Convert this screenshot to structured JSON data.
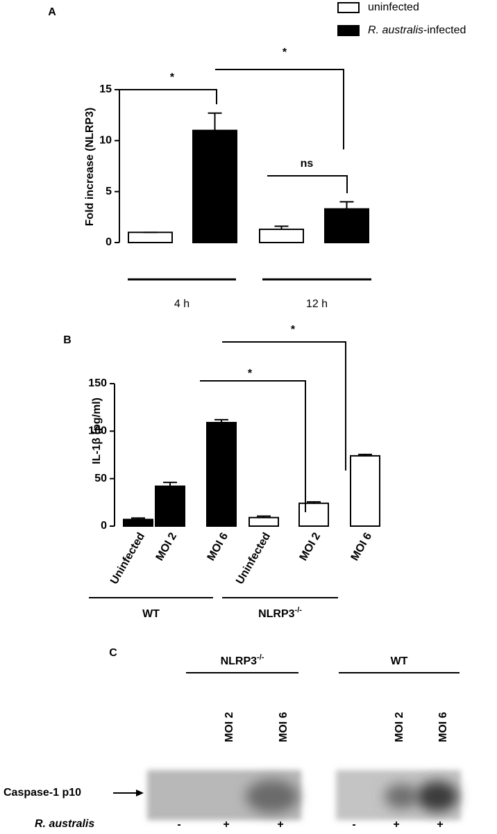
{
  "chart_data": [
    {
      "type": "bar",
      "panel": "A",
      "ylabel": "Fold increase (NLRP3)",
      "categories": [
        "4 h",
        "12 h"
      ],
      "series": [
        {
          "name": "uninfected",
          "color": "#ffffff",
          "values": [
            1,
            1.3
          ],
          "errors": [
            0,
            0.3
          ]
        },
        {
          "name": "R. australis-infected",
          "color": "#000000",
          "values": [
            11,
            3.3
          ],
          "errors": [
            1.7,
            0.7
          ]
        }
      ],
      "ylim": [
        0,
        15
      ],
      "yticks": [
        0,
        5,
        10,
        15
      ],
      "annotations": [
        "*",
        "*",
        "ns"
      ]
    },
    {
      "type": "bar",
      "panel": "B",
      "ylabel": "IL-1β (pg/ml)",
      "categories": [
        "Uninfected",
        "MOI 2",
        "MOI 6",
        "Uninfected",
        "MOI 2",
        "MOI 6"
      ],
      "values": [
        7,
        42,
        109,
        9,
        24,
        74
      ],
      "errors": [
        1.5,
        4,
        3,
        1.5,
        1.5,
        1.5
      ],
      "colors": [
        "#000000",
        "#000000",
        "#000000",
        "#ffffff",
        "#ffffff",
        "#ffffff"
      ],
      "groups": [
        {
          "label": "WT"
        },
        {
          "label": "NLRP3",
          "superscript": "-/-"
        }
      ],
      "ylim": [
        0,
        150
      ],
      "yticks": [
        0,
        50,
        100,
        150
      ],
      "annotations": [
        "*",
        "*"
      ]
    }
  ],
  "blot": {
    "panel": "C",
    "groups": [
      {
        "label": "NLRP3",
        "superscript": "-/-"
      },
      {
        "label": "WT"
      }
    ],
    "lanes": [
      {
        "moi": null,
        "sign": "-"
      },
      {
        "moi": "MOI 2",
        "sign": "+"
      },
      {
        "moi": "MOI 6",
        "sign": "+"
      },
      {
        "moi": null,
        "sign": "-"
      },
      {
        "moi": "MOI 2",
        "sign": "+"
      },
      {
        "moi": "MOI 6",
        "sign": "+"
      }
    ],
    "row_label": "Caspase-1 p10",
    "treatment_label": "R. australis"
  }
}
